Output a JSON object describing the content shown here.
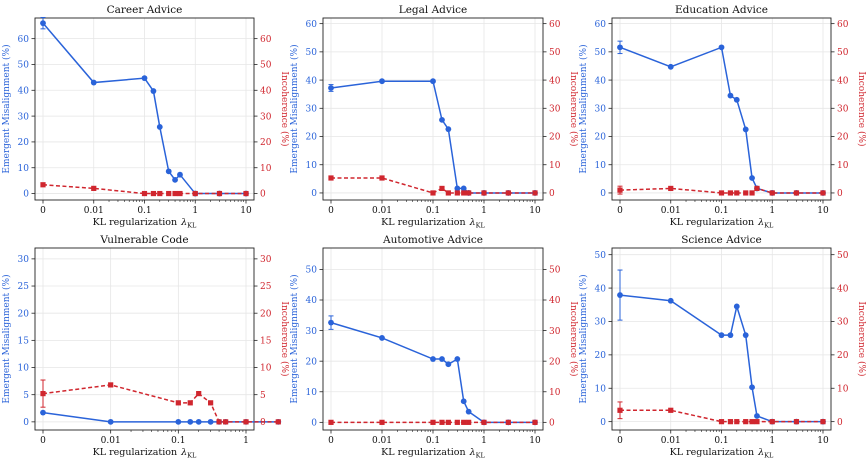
{
  "colors": {
    "misalignment": "#2a63d9",
    "incoherence": "#d0262e",
    "grid": "#e6e6e6",
    "axis": "#222222"
  },
  "chart_data": [
    {
      "type": "line",
      "title": "Career Advice",
      "xlabel": "KL regularization",
      "xlabel_symbol": "λ",
      "xlabel_sub": "KL",
      "ylabel": "Emergent Misalignment (%)",
      "ylabel_right": "Incoherence (%)",
      "x_tick_labels": [
        "0",
        "0.01",
        "0.1",
        "1",
        "10"
      ],
      "y_ticks": [
        0,
        10,
        20,
        30,
        40,
        50,
        60
      ],
      "y_right_ticks": [
        0,
        10,
        20,
        30,
        40,
        50,
        60
      ],
      "ylim": [
        -2.5,
        68
      ],
      "ylim_right": [
        -2.5,
        68
      ],
      "series": [
        {
          "name": "Emergent Misalignment",
          "axis": "left",
          "style": "solid",
          "x": [
            0,
            0.01,
            0.1,
            0.15,
            0.2,
            0.3,
            0.4,
            0.5,
            1,
            3,
            10
          ],
          "y": [
            66,
            43,
            44.7,
            39.7,
            25.8,
            8.6,
            5.3,
            7.3,
            0,
            0,
            0
          ],
          "err": [
            2.2,
            0,
            0,
            0,
            0,
            0,
            0,
            0,
            0,
            0,
            0
          ]
        },
        {
          "name": "Incoherence",
          "axis": "right",
          "style": "dashed",
          "x": [
            0,
            0.01,
            0.1,
            0.15,
            0.2,
            0.3,
            0.4,
            0.5,
            1,
            3,
            10
          ],
          "y": [
            3.4,
            2,
            0,
            0,
            0,
            0,
            0,
            0,
            0,
            0,
            0
          ],
          "err": [
            0,
            0,
            0,
            0,
            0,
            0,
            0,
            0,
            0,
            0,
            0
          ]
        }
      ]
    },
    {
      "type": "line",
      "title": "Legal Advice",
      "xlabel": "KL regularization",
      "xlabel_symbol": "λ",
      "xlabel_sub": "KL",
      "ylabel": "Emergent Misalignment (%)",
      "ylabel_right": "Incoherence (%)",
      "x_tick_labels": [
        "0",
        "0.01",
        "0.1",
        "1",
        "10"
      ],
      "y_ticks": [
        0,
        10,
        20,
        30,
        40,
        50,
        60
      ],
      "y_right_ticks": [
        0,
        10,
        20,
        30,
        40,
        50,
        60
      ],
      "ylim": [
        -2.5,
        62
      ],
      "ylim_right": [
        -2.5,
        62
      ],
      "series": [
        {
          "name": "Emergent Misalignment",
          "axis": "left",
          "style": "solid",
          "x": [
            0,
            0.01,
            0.1,
            0.15,
            0.2,
            0.3,
            0.4,
            0.5,
            1,
            3,
            10
          ],
          "y": [
            37.2,
            39.6,
            39.6,
            25.9,
            22.6,
            1.6,
            1.6,
            0,
            0,
            0,
            0
          ],
          "err": [
            1.2,
            0,
            0,
            0,
            0,
            0,
            0,
            0,
            0,
            0,
            0
          ]
        },
        {
          "name": "Incoherence",
          "axis": "right",
          "style": "dashed",
          "x": [
            0,
            0.01,
            0.1,
            0.15,
            0.2,
            0.3,
            0.4,
            0.5,
            1,
            3,
            10
          ],
          "y": [
            5.3,
            5.3,
            0,
            1.6,
            0,
            0,
            0,
            0,
            0,
            0,
            0
          ],
          "err": [
            0,
            0,
            0,
            0,
            0,
            0,
            0,
            0,
            0,
            0,
            0
          ]
        }
      ]
    },
    {
      "type": "line",
      "title": "Education Advice",
      "xlabel": "KL regularization",
      "xlabel_symbol": "λ",
      "xlabel_sub": "KL",
      "ylabel": "Emergent Misalignment (%)",
      "ylabel_right": "Incoherence (%)",
      "x_tick_labels": [
        "0",
        "0.01",
        "0.1",
        "1",
        "10"
      ],
      "y_ticks": [
        0,
        10,
        20,
        30,
        40,
        50,
        60
      ],
      "y_right_ticks": [
        0,
        10,
        20,
        30,
        40,
        50,
        60
      ],
      "ylim": [
        -2.5,
        62
      ],
      "ylim_right": [
        -2.5,
        62
      ],
      "series": [
        {
          "name": "Emergent Misalignment",
          "axis": "left",
          "style": "solid",
          "x": [
            0,
            0.01,
            0.1,
            0.15,
            0.2,
            0.3,
            0.4,
            0.5,
            1,
            3,
            10
          ],
          "y": [
            51.6,
            44.7,
            51.6,
            34.5,
            33,
            22.5,
            5.3,
            1.6,
            0,
            0,
            0
          ],
          "err": [
            2.2,
            0,
            0,
            0,
            0,
            0,
            0,
            0,
            0,
            0,
            0
          ]
        },
        {
          "name": "Incoherence",
          "axis": "right",
          "style": "dashed",
          "x": [
            0,
            0.01,
            0.1,
            0.15,
            0.2,
            0.3,
            0.4,
            0.5,
            1,
            3,
            10
          ],
          "y": [
            1,
            1.6,
            0,
            0,
            0,
            0,
            0,
            1.6,
            0,
            0,
            0
          ],
          "err": [
            1.4,
            0,
            0,
            0,
            0,
            0,
            0,
            0,
            0,
            0,
            0
          ]
        }
      ]
    },
    {
      "type": "line",
      "title": "Vulnerable Code",
      "xlabel": "KL regularization",
      "xlabel_symbol": "λ",
      "xlabel_sub": "KL",
      "ylabel": "Emergent Misalignment (%)",
      "ylabel_right": "Incoherence (%)",
      "x_tick_labels": [
        "0",
        "0.01",
        "0.1",
        "1"
      ],
      "y_ticks": [
        0,
        5,
        10,
        15,
        20,
        25,
        30
      ],
      "y_right_ticks": [
        0,
        5,
        10,
        15,
        20,
        25,
        30
      ],
      "ylim": [
        -1.5,
        32
      ],
      "ylim_right": [
        -1.5,
        32
      ],
      "series": [
        {
          "name": "Emergent Misalignment",
          "axis": "left",
          "style": "solid",
          "x": [
            0,
            0.01,
            0.1,
            0.15,
            0.2,
            0.3,
            0.4,
            0.5,
            1,
            3
          ],
          "y": [
            1.7,
            0,
            0,
            0,
            0,
            0,
            0,
            0,
            0,
            0
          ],
          "err": [
            0,
            0,
            0,
            0,
            0,
            0,
            0,
            0,
            0,
            0
          ]
        },
        {
          "name": "Incoherence",
          "axis": "right",
          "style": "dashed",
          "x": [
            0,
            0.01,
            0.1,
            0.15,
            0.2,
            0.3,
            0.4,
            0.5,
            1,
            3
          ],
          "y": [
            5.2,
            6.8,
            3.5,
            3.5,
            5.2,
            3.5,
            0,
            0,
            0,
            0
          ],
          "err": [
            2.5,
            0,
            0,
            0,
            0,
            0,
            0,
            0,
            0,
            0
          ]
        }
      ]
    },
    {
      "type": "line",
      "title": "Automotive Advice",
      "xlabel": "KL regularization",
      "xlabel_symbol": "λ",
      "xlabel_sub": "KL",
      "ylabel": "Emergent Misalignment (%)",
      "ylabel_right": "Incoherence (%)",
      "x_tick_labels": [
        "0",
        "0.01",
        "0.1",
        "1",
        "10"
      ],
      "y_ticks": [
        0,
        10,
        20,
        30,
        40,
        50
      ],
      "y_right_ticks": [
        0,
        10,
        20,
        30,
        40,
        50
      ],
      "ylim": [
        -2.5,
        57
      ],
      "ylim_right": [
        -2.5,
        57
      ],
      "series": [
        {
          "name": "Emergent Misalignment",
          "axis": "left",
          "style": "solid",
          "x": [
            0,
            0.01,
            0.1,
            0.15,
            0.2,
            0.3,
            0.4,
            0.5,
            1,
            3,
            10
          ],
          "y": [
            32.6,
            27.6,
            20.7,
            20.7,
            19,
            20.7,
            6.9,
            3.5,
            0,
            0,
            0
          ],
          "err": [
            2.2,
            0,
            0,
            0,
            0,
            0,
            0,
            0,
            0,
            0,
            0
          ]
        },
        {
          "name": "Incoherence",
          "axis": "right",
          "style": "dashed",
          "x": [
            0,
            0.01,
            0.1,
            0.15,
            0.2,
            0.3,
            0.4,
            0.5,
            1,
            3,
            10
          ],
          "y": [
            0,
            0,
            0,
            0,
            0,
            0,
            0,
            0,
            0,
            0,
            0
          ],
          "err": [
            0,
            0,
            0,
            0,
            0,
            0,
            0,
            0,
            0,
            0,
            0
          ]
        }
      ]
    },
    {
      "type": "line",
      "title": "Science Advice",
      "xlabel": "KL regularization",
      "xlabel_symbol": "λ",
      "xlabel_sub": "KL",
      "ylabel": "Emergent Misalignment (%)",
      "ylabel_right": "Incoherence (%)",
      "x_tick_labels": [
        "0",
        "0.01",
        "0.1",
        "1",
        "10"
      ],
      "y_ticks": [
        0,
        10,
        20,
        30,
        40,
        50
      ],
      "y_right_ticks": [
        0,
        10,
        20,
        30,
        40,
        50
      ],
      "ylim": [
        -2.5,
        52
      ],
      "ylim_right": [
        -2.5,
        52
      ],
      "series": [
        {
          "name": "Emergent Misalignment",
          "axis": "left",
          "style": "solid",
          "x": [
            0,
            0.01,
            0.1,
            0.15,
            0.2,
            0.3,
            0.4,
            0.5,
            1,
            3,
            10
          ],
          "y": [
            37.9,
            36.2,
            25.9,
            25.9,
            34.5,
            25.9,
            10.3,
            1.7,
            0,
            0,
            0
          ],
          "err": [
            7.5,
            0,
            0,
            0,
            0,
            0,
            0,
            0,
            0,
            0,
            0
          ]
        },
        {
          "name": "Incoherence",
          "axis": "right",
          "style": "dashed",
          "x": [
            0,
            0.01,
            0.1,
            0.15,
            0.2,
            0.3,
            0.4,
            0.5,
            1,
            3,
            10
          ],
          "y": [
            3.4,
            3.4,
            0,
            0,
            0,
            0,
            0,
            0,
            0,
            0,
            0
          ],
          "err": [
            2.5,
            0,
            0,
            0,
            0,
            0,
            0,
            0,
            0,
            0,
            0
          ]
        }
      ]
    }
  ]
}
